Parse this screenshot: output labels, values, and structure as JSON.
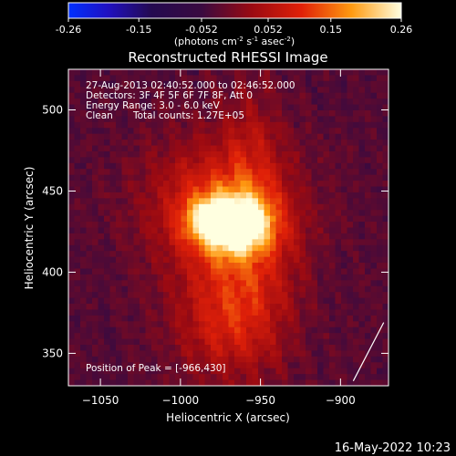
{
  "chart_data": {
    "type": "heatmap",
    "title": "Reconstructed RHESSI Image",
    "colorbar": {
      "ticks": [
        "-0.26",
        "-0.15",
        "-0.052",
        "0.052",
        "0.15",
        "0.26"
      ],
      "tick_values": [
        -0.26,
        -0.15,
        -0.052,
        0.052,
        0.15,
        0.26
      ],
      "range": [
        -0.26,
        0.26
      ],
      "unit_parts": [
        "(photons cm",
        "-2",
        " s",
        "-1",
        " asec",
        "-2",
        ")"
      ]
    },
    "xlabel": "Heliocentric X (arcsec)",
    "ylabel": "Heliocentric Y (arcsec)",
    "xlim": [
      -1070,
      -870
    ],
    "ylim": [
      330,
      525
    ],
    "x_ticks": [
      -1050,
      -1000,
      -950,
      -900
    ],
    "x_tick_labels": [
      "−1050",
      "−1000",
      "−950",
      "−900"
    ],
    "y_ticks": [
      350,
      400,
      450,
      500
    ],
    "y_tick_labels": [
      "350",
      "400",
      "450",
      "500"
    ],
    "annotations": {
      "time_range": "27-Aug-2013 02:40:52.000 to 02:46:52.000",
      "detectors": "Detectors: 3F 4F 5F 6F 7F 8F, Att 0",
      "energy": "Energy Range: 3.0 - 6.0 keV",
      "method": "Clean",
      "counts": "Total counts: 1.27E+05",
      "peak": "Position of Peak = [-966,430]"
    },
    "peak": [
      -966,
      430
    ],
    "sources": [
      {
        "x": -966,
        "y": 430,
        "sx": 16,
        "sy": 12,
        "amp": 0.26
      },
      {
        "x": -985,
        "y": 433,
        "sx": 10,
        "sy": 9,
        "amp": 0.09
      },
      {
        "x": -975,
        "y": 440,
        "sx": 32,
        "sy": 30,
        "amp": 0.13
      },
      {
        "x": -960,
        "y": 390,
        "sx": 22,
        "sy": 35,
        "amp": 0.09
      },
      {
        "x": -955,
        "y": 475,
        "sx": 12,
        "sy": 35,
        "amp": 0.05
      },
      {
        "x": -975,
        "y": 365,
        "sx": 24,
        "sy": 22,
        "amp": 0.06
      }
    ],
    "background": -0.03,
    "limb_line": [
      [
        -892,
        333
      ],
      [
        -873,
        369
      ]
    ],
    "colormap": "rainbow"
  },
  "footer": {
    "date": "16-May-2022 10:23"
  }
}
